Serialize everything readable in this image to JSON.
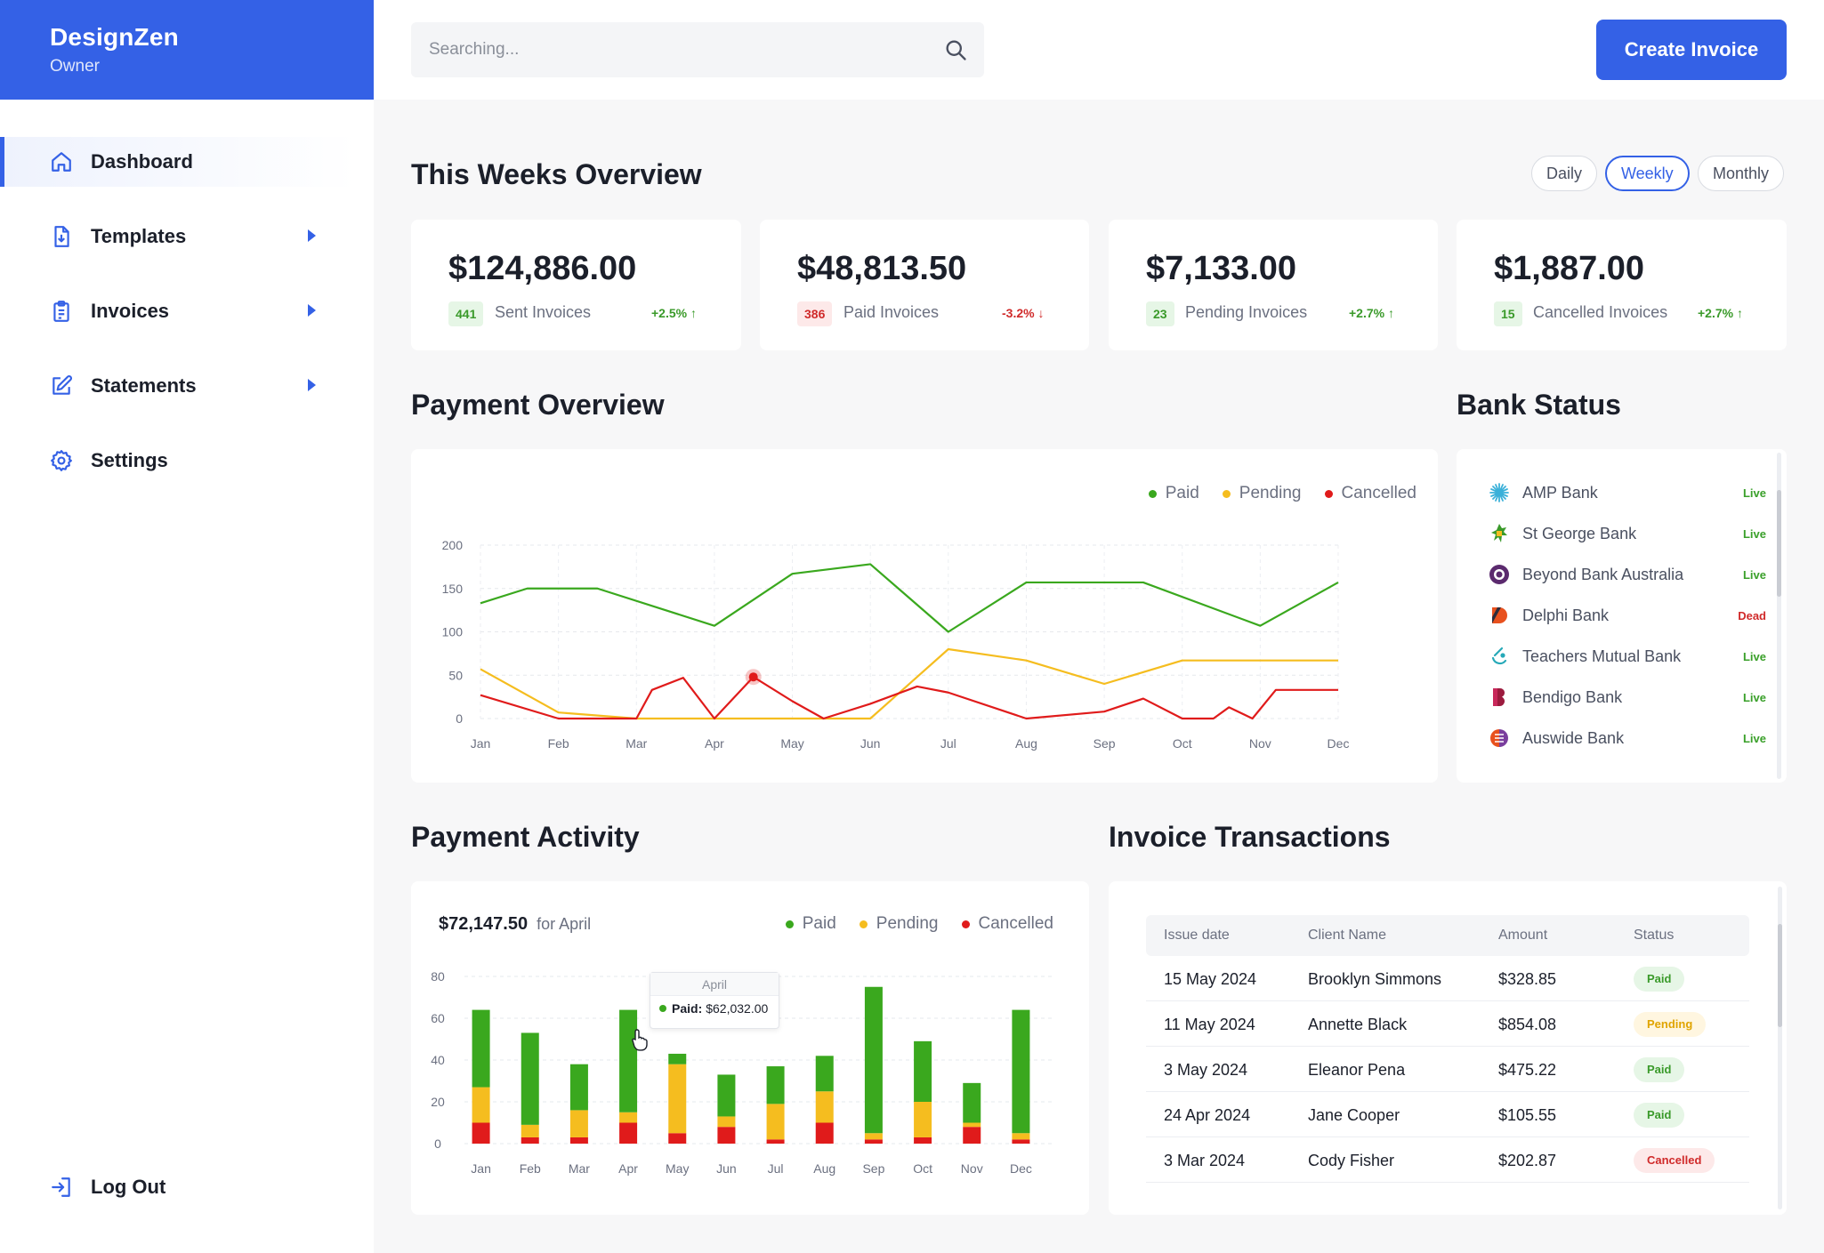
{
  "brand": {
    "name": "DesignZen",
    "role": "Owner"
  },
  "nav": {
    "dashboard": "Dashboard",
    "templates": "Templates",
    "invoices": "Invoices",
    "statements": "Statements",
    "settings": "Settings",
    "logout": "Log Out"
  },
  "search": {
    "placeholder": "Searching..."
  },
  "header": {
    "create_label": "Create Invoice"
  },
  "overview": {
    "title": "This Weeks Overview",
    "periods": [
      "Daily",
      "Weekly",
      "Monthly"
    ],
    "active_period": "Weekly",
    "cards": [
      {
        "amount": "$124,886.00",
        "count": "441",
        "label": "Sent Invoices",
        "delta": "+2.5%",
        "direction": "up"
      },
      {
        "amount": "$48,813.50",
        "count": "386",
        "label": "Paid Invoices",
        "delta": "-3.2%",
        "direction": "down"
      },
      {
        "amount": "$7,133.00",
        "count": "23",
        "label": "Pending Invoices",
        "delta": "+2.7%",
        "direction": "up"
      },
      {
        "amount": "$1,887.00",
        "count": "15",
        "label": "Cancelled Invoices",
        "delta": "+2.7%",
        "direction": "up"
      }
    ]
  },
  "legend": {
    "paid": "Paid",
    "pending": "Pending",
    "cancelled": "Cancelled"
  },
  "colors": {
    "paid": "#3aa81e",
    "pending": "#f5bd1f",
    "cancelled": "#e01b1b",
    "accent": "#3461e6"
  },
  "payment_overview": {
    "title": "Payment Overview"
  },
  "bank_status": {
    "title": "Bank Status",
    "banks": [
      {
        "name": "AMP Bank",
        "status": "Live",
        "icon": "amp-bank-logo-icon"
      },
      {
        "name": "St George Bank",
        "status": "Live",
        "icon": "st-george-bank-logo-icon"
      },
      {
        "name": "Beyond Bank Australia",
        "status": "Live",
        "icon": "beyond-bank-logo-icon"
      },
      {
        "name": "Delphi Bank",
        "status": "Dead",
        "icon": "delphi-bank-logo-icon"
      },
      {
        "name": "Teachers Mutual Bank",
        "status": "Live",
        "icon": "teachers-mutual-bank-logo-icon"
      },
      {
        "name": "Bendigo Bank",
        "status": "Live",
        "icon": "bendigo-bank-logo-icon"
      },
      {
        "name": "Auswide Bank",
        "status": "Live",
        "icon": "auswide-bank-logo-icon"
      }
    ]
  },
  "payment_activity": {
    "title": "Payment Activity",
    "amount": "$72,147.50",
    "period": "for April",
    "tooltip": {
      "month": "April",
      "label": "Paid:",
      "value": "$62,032.00"
    }
  },
  "transactions": {
    "title": "Invoice Transactions",
    "columns": [
      "Issue date",
      "Client Name",
      "Amount",
      "Status"
    ],
    "rows": [
      {
        "date": "15 May 2024",
        "client": "Brooklyn Simmons",
        "amount": "$328.85",
        "status": "Paid"
      },
      {
        "date": "11 May 2024",
        "client": "Annette Black",
        "amount": "$854.08",
        "status": "Pending"
      },
      {
        "date": "3 May 2024",
        "client": "Eleanor Pena",
        "amount": "$475.22",
        "status": "Paid"
      },
      {
        "date": "24 Apr 2024",
        "client": "Jane Cooper",
        "amount": "$105.55",
        "status": "Paid"
      },
      {
        "date": "3 Mar 2024",
        "client": "Cody Fisher",
        "amount": "$202.87",
        "status": "Cancelled"
      }
    ]
  },
  "chart_data": [
    {
      "type": "line",
      "x": [
        "Jan",
        "Feb",
        "Mar",
        "Apr",
        "May",
        "Jun",
        "Jul",
        "Aug",
        "Sep",
        "Oct",
        "Nov",
        "Dec"
      ],
      "ylim": [
        0,
        200
      ],
      "yticks": [
        0,
        50,
        100,
        150,
        200
      ],
      "grid": true,
      "legend_position": "top-right",
      "series": [
        {
          "name": "Paid",
          "points": [
            [
              0,
              133
            ],
            [
              0.6,
              150
            ],
            [
              1.5,
              150
            ],
            [
              3,
              107
            ],
            [
              4,
              167
            ],
            [
              5,
              178
            ],
            [
              6,
              100
            ],
            [
              7,
              157
            ],
            [
              8.5,
              157
            ],
            [
              10,
              107
            ],
            [
              11,
              157
            ]
          ]
        },
        {
          "name": "Pending",
          "points": [
            [
              0,
              57
            ],
            [
              1,
              7
            ],
            [
              2,
              0
            ],
            [
              5,
              0
            ],
            [
              6,
              80
            ],
            [
              7,
              67
            ],
            [
              8,
              40
            ],
            [
              9,
              67
            ],
            [
              11,
              67
            ]
          ]
        },
        {
          "name": "Cancelled",
          "points": [
            [
              0,
              27
            ],
            [
              1,
              0
            ],
            [
              2,
              0
            ],
            [
              2.2,
              33
            ],
            [
              2.6,
              47
            ],
            [
              3,
              0
            ],
            [
              3.5,
              48
            ],
            [
              4,
              20
            ],
            [
              4.4,
              0
            ],
            [
              5,
              17
            ],
            [
              5.6,
              37
            ],
            [
              6,
              30
            ],
            [
              7,
              0
            ],
            [
              8,
              8
            ],
            [
              8.5,
              23
            ],
            [
              9,
              0
            ],
            [
              9.4,
              0
            ],
            [
              9.6,
              13
            ],
            [
              9.9,
              0
            ],
            [
              10.2,
              33
            ],
            [
              11,
              33
            ]
          ]
        }
      ],
      "highlight": {
        "series": "Cancelled",
        "point": [
          3.5,
          48
        ]
      }
    },
    {
      "type": "bar",
      "stacked": true,
      "categories": [
        "Jan",
        "Feb",
        "Mar",
        "Apr",
        "May",
        "Jun",
        "Jul",
        "Aug",
        "Sep",
        "Oct",
        "Nov",
        "Dec"
      ],
      "ylim": [
        0,
        80
      ],
      "yticks": [
        0,
        20,
        40,
        60,
        80
      ],
      "grid": true,
      "legend_position": "top-right",
      "series": [
        {
          "name": "Cancelled",
          "values": [
            10,
            3,
            3,
            10,
            5,
            8,
            2,
            10,
            2,
            3,
            8,
            2
          ]
        },
        {
          "name": "Pending",
          "values": [
            17,
            6,
            13,
            5,
            33,
            5,
            17,
            15,
            3,
            17,
            2,
            3
          ]
        },
        {
          "name": "Paid",
          "values": [
            37,
            44,
            22,
            49,
            5,
            20,
            18,
            17,
            70,
            29,
            19,
            59
          ]
        }
      ]
    }
  ]
}
